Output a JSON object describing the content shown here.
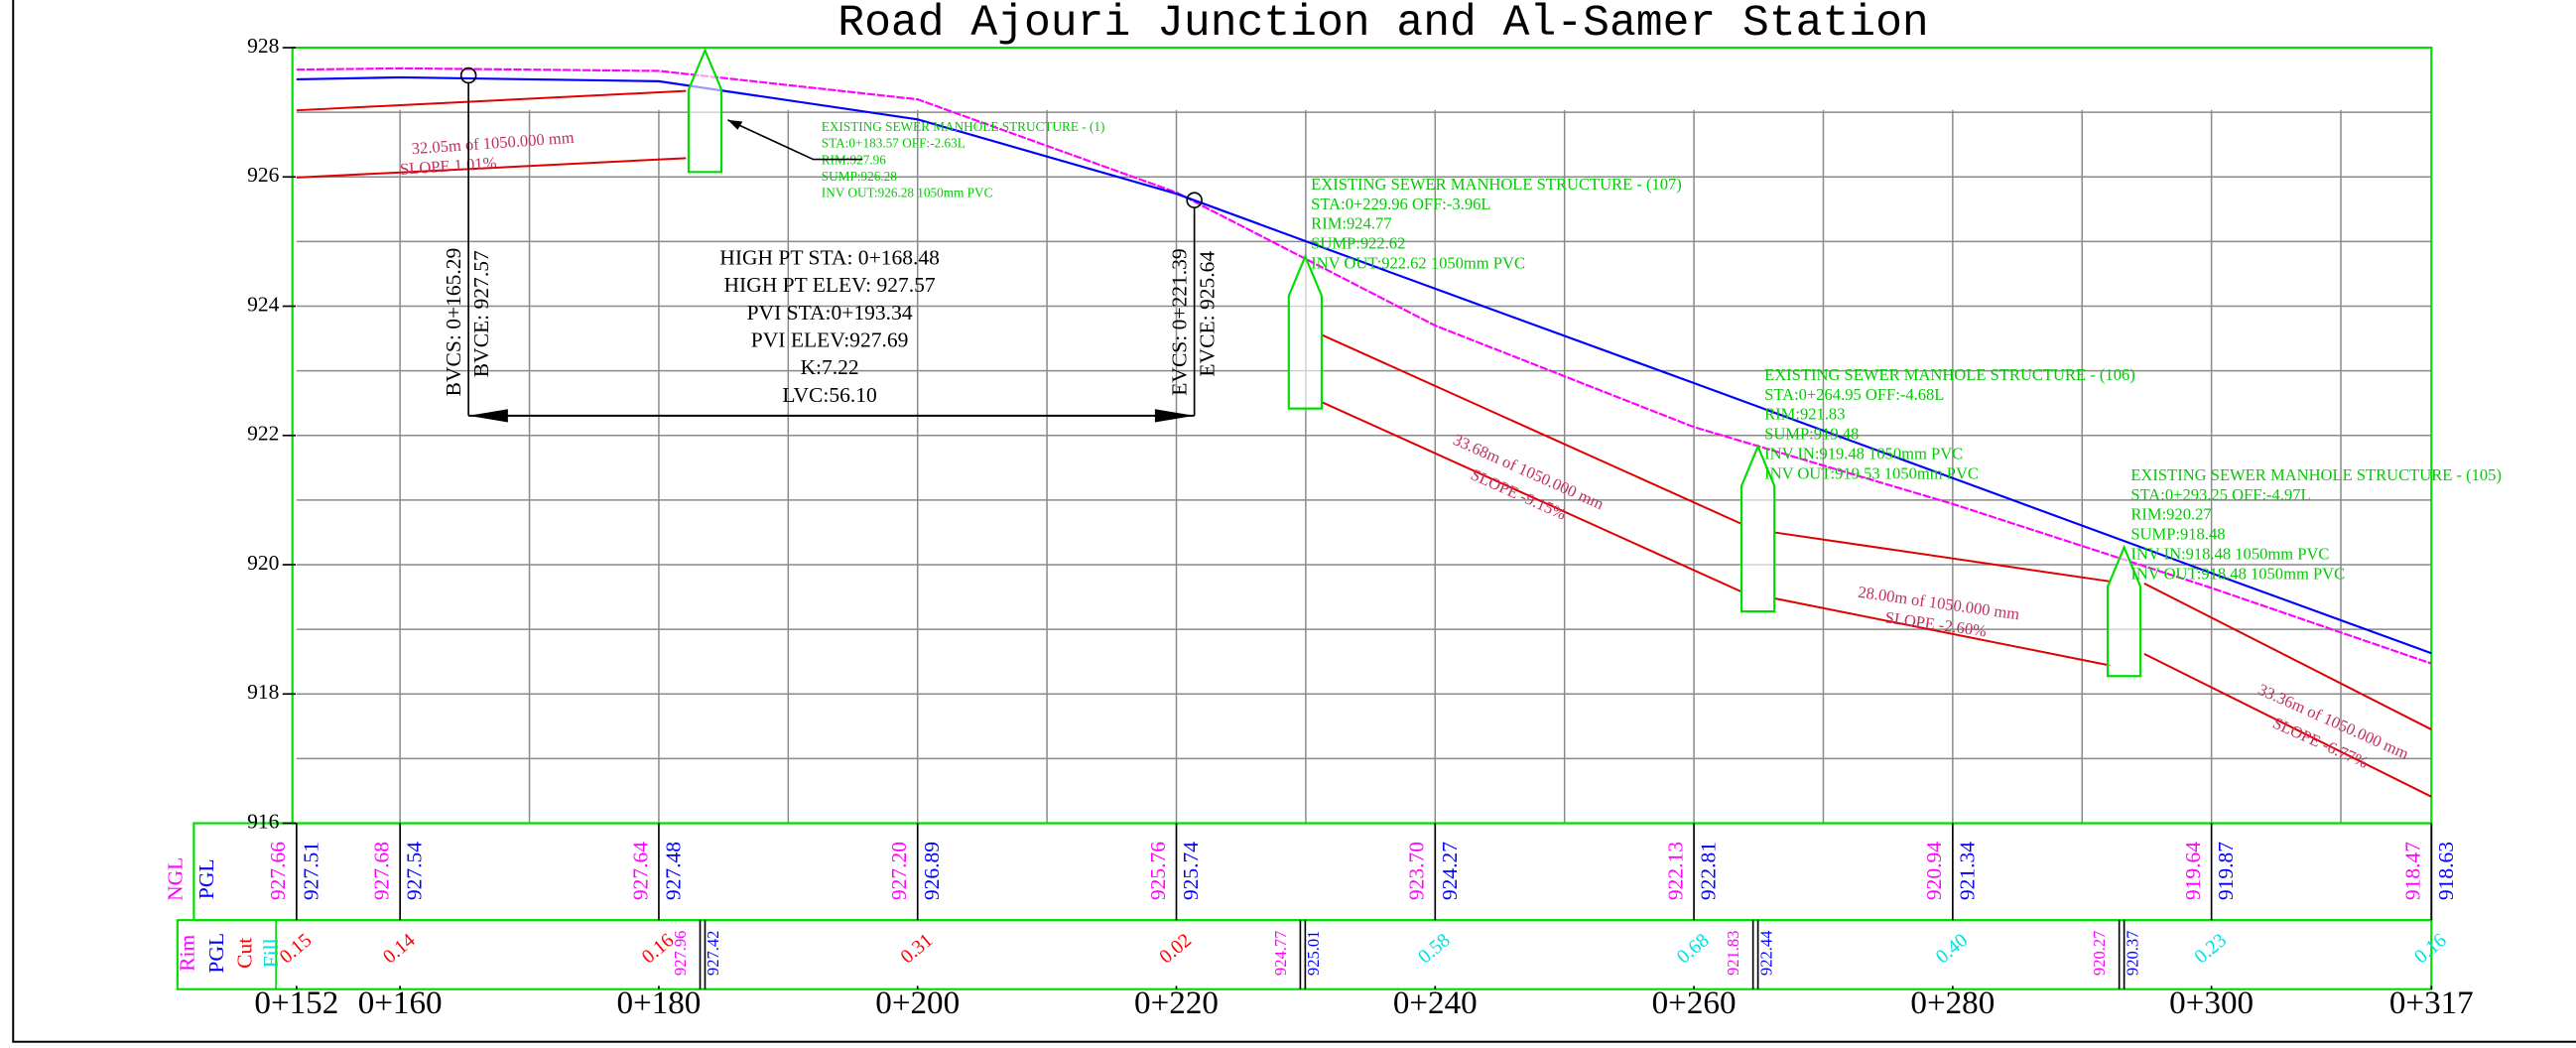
{
  "chart_data": {
    "type": "line",
    "title": "Road Ajouri Junction and Al-Samer Station",
    "xlim": [
      152,
      317
    ],
    "ylim": [
      916,
      928
    ],
    "yticks": [
      916,
      918,
      920,
      922,
      924,
      926,
      928
    ],
    "xticks": [
      {
        "value": 152,
        "label": "0+152"
      },
      {
        "value": 160,
        "label": "0+160"
      },
      {
        "value": 180,
        "label": "0+180"
      },
      {
        "value": 200,
        "label": "0+200"
      },
      {
        "value": 220,
        "label": "0+220"
      },
      {
        "value": 240,
        "label": "0+240"
      },
      {
        "value": 260,
        "label": "0+260"
      },
      {
        "value": 280,
        "label": "0+280"
      },
      {
        "value": 300,
        "label": "0+300"
      },
      {
        "value": 317,
        "label": "0+317"
      }
    ],
    "grid": true,
    "ygrid": [
      917,
      918,
      919,
      920,
      921,
      922,
      923,
      924,
      925,
      926,
      927
    ],
    "xgrid": [
      160,
      170,
      180,
      190,
      200,
      210,
      220,
      230,
      240,
      250,
      260,
      270,
      280,
      290,
      300,
      310
    ],
    "series": [
      {
        "name": "NGL",
        "color": "#ff00ff",
        "x": [
          152,
          160,
          180,
          200,
          220,
          240,
          260,
          280,
          300,
          317
        ],
        "values": [
          927.66,
          927.68,
          927.64,
          927.2,
          925.76,
          923.7,
          922.13,
          920.94,
          919.64,
          918.47
        ],
        "value_labels": [
          "927.66",
          "927.68",
          "927.64",
          "927.20",
          "925.76",
          "923.70",
          "922.13",
          "920.94",
          "919.64",
          "918.47"
        ]
      },
      {
        "name": "PGL",
        "color": "#0000ff",
        "x": [
          152,
          160,
          180,
          200,
          220,
          240,
          260,
          280,
          300,
          317
        ],
        "values": [
          927.51,
          927.54,
          927.48,
          926.89,
          925.74,
          924.27,
          922.81,
          921.34,
          919.87,
          918.63
        ],
        "value_labels": [
          "927.51",
          "927.54",
          "927.48",
          "926.89",
          "925.74",
          "924.27",
          "922.81",
          "921.34",
          "919.87",
          "918.63"
        ]
      }
    ],
    "rim_name": "Rim",
    "cut": {
      "name": "Cut",
      "color": "#ff0000",
      "x": [
        152,
        160,
        180,
        200,
        220
      ],
      "values": [
        0.15,
        0.14,
        0.16,
        0.31,
        0.02
      ],
      "value_labels": [
        "0.15",
        "0.14",
        "0.16",
        "0.31",
        "0.02"
      ]
    },
    "fill": {
      "name": "Fill",
      "color": "#00e0e0",
      "x": [
        240,
        260,
        280,
        300,
        317
      ],
      "values": [
        0.58,
        0.68,
        0.4,
        0.23,
        0.16
      ],
      "value_labels": [
        "0.58",
        "0.68",
        "0.40",
        "0.23",
        "0.16"
      ]
    },
    "manholes": [
      {
        "name": "EXISTING SEWER MANHOLE STRUCTURE - (1)",
        "station": 183.57,
        "rim": 927.96,
        "sump": 926.28,
        "pgl": 927.42,
        "lines": [
          "STA:0+183.57 OFF:-2.63L",
          "RIM:927.96",
          "SUMP:926.28",
          "INV OUT:926.28 1050mm PVC"
        ]
      },
      {
        "name": "EXISTING SEWER MANHOLE STRUCTURE - (107)",
        "station": 229.96,
        "rim": 924.77,
        "sump": 922.62,
        "pgl": 925.01,
        "lines": [
          "STA:0+229.96 OFF:-3.96L",
          "RIM:924.77",
          "SUMP:922.62",
          "INV OUT:922.62 1050mm PVC"
        ]
      },
      {
        "name": "EXISTING SEWER MANHOLE STRUCTURE - (106)",
        "station": 264.95,
        "rim": 921.83,
        "sump": 919.48,
        "pgl": 922.44,
        "lines": [
          "STA:0+264.95 OFF:-4.68L",
          "RIM:921.83",
          "SUMP:919.48",
          "INV IN:919.48 1050mm PVC",
          "INV OUT:919.53 1050mm PVC"
        ]
      },
      {
        "name": "EXISTING SEWER MANHOLE STRUCTURE - (105)",
        "station": 293.25,
        "rim": 920.27,
        "sump": 918.48,
        "pgl": 920.37,
        "lines": [
          "STA:0+293.25 OFF:-4.97L",
          "RIM:920.27",
          "SUMP:918.48",
          "INV IN:918.48 1050mm PVC",
          "INV OUT:918.48 1050mm PVC"
        ]
      }
    ],
    "pipes": [
      {
        "label": "32.05m of 1050.000 mm",
        "slope": "SLOPE 1.01%",
        "x": [
          152,
          182.1
        ],
        "crown": [
          927.03,
          927.33
        ],
        "invert": [
          925.99,
          926.29
        ]
      },
      {
        "label": "33.68m of 1050.000 mm",
        "slope": "SLOPE -9.15%",
        "x": [
          231.3,
          263.7
        ],
        "crown": [
          923.55,
          920.63
        ],
        "invert": [
          922.51,
          919.58
        ]
      },
      {
        "label": "28.00m of 1050.000 mm",
        "slope": "SLOPE -2.60%",
        "x": [
          266.2,
          292.2
        ],
        "crown": [
          920.5,
          919.74
        ],
        "invert": [
          919.48,
          918.44
        ]
      },
      {
        "label": "33.36m of 1050.000 mm",
        "slope": "SLOPE -6.77%",
        "x": [
          294.8,
          317
        ],
        "crown": [
          919.71,
          917.45
        ],
        "invert": [
          918.62,
          916.41
        ]
      }
    ],
    "vcurve": {
      "bvcs": "BVCS: 0+165.29",
      "bvce": "BVCE: 927.57",
      "evcs": "EVCS: 0+221.39",
      "evce": "EVCE: 925.64",
      "bvc_x": 165.29,
      "bvc_y": 927.57,
      "evc_x": 221.39,
      "evc_y": 925.64,
      "lines": [
        "HIGH PT STA: 0+168.48",
        "HIGH PT ELEV: 927.57",
        "PVI STA:0+193.34",
        "PVI ELEV:927.69",
        "K:7.22",
        "LVC:56.10"
      ]
    }
  }
}
